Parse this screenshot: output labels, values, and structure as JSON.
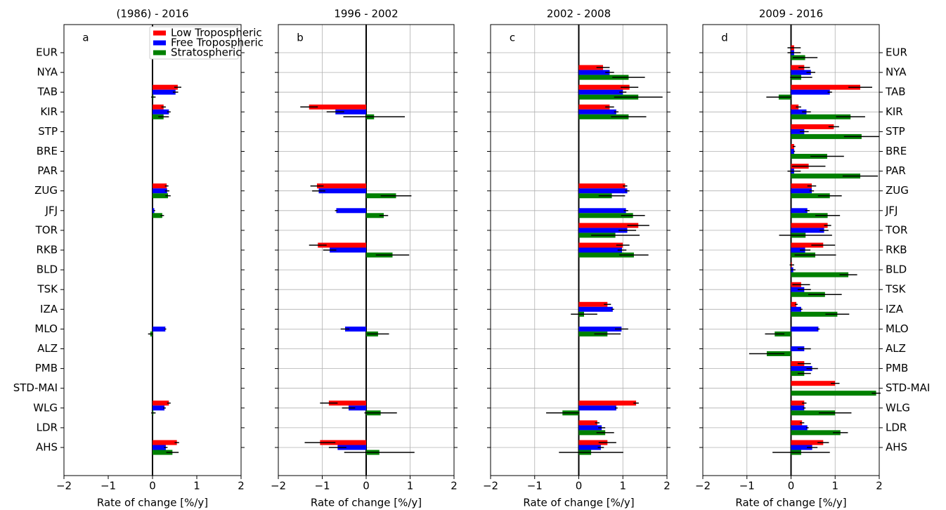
{
  "chart_data": [
    {
      "type": "bar",
      "orientation": "horizontal",
      "title": "(1986) - 2016",
      "annotation": "a",
      "xlabel": "Rate of change [%/y]",
      "categories": [
        "EUR",
        "NYA",
        "TAB",
        "KIR",
        "STP",
        "BRE",
        "PAR",
        "ZUG",
        "JFJ",
        "TOR",
        "RKB",
        "BLD",
        "TSK",
        "IZA",
        "MLO",
        "ALZ",
        "PMB",
        "STD-MAI",
        "WLG",
        "LDR",
        "AHS"
      ],
      "category_labels_side": "left",
      "grid": false,
      "legend": "upper right",
      "xlim": [
        -2,
        2
      ],
      "xticks": [
        {
          "value": -2,
          "label": "−2"
        },
        {
          "value": -1,
          "label": "−1"
        },
        0,
        1,
        2
      ],
      "series": [
        {
          "name": "Low Tropospheric",
          "color": "#ff0000",
          "values": [
            null,
            null,
            0.57,
            0.25,
            null,
            null,
            null,
            0.32,
            null,
            null,
            null,
            null,
            null,
            null,
            null,
            null,
            null,
            null,
            0.37,
            null,
            0.55
          ],
          "errors": [
            null,
            null,
            0.08,
            0.05,
            null,
            null,
            null,
            0.04,
            null,
            null,
            null,
            null,
            null,
            null,
            null,
            null,
            null,
            null,
            0.04,
            null,
            0.05
          ]
        },
        {
          "name": "Free Tropospheric",
          "color": "#0000ff",
          "values": [
            null,
            null,
            0.52,
            0.37,
            null,
            null,
            null,
            0.33,
            0.04,
            null,
            null,
            null,
            null,
            null,
            0.29,
            null,
            null,
            null,
            0.27,
            null,
            0.3
          ],
          "errors": [
            null,
            null,
            0.06,
            0.04,
            null,
            null,
            null,
            0.05,
            0.02,
            null,
            null,
            null,
            null,
            null,
            0.02,
            null,
            null,
            null,
            0.03,
            null,
            0.04
          ]
        },
        {
          "name": "Stratospheric",
          "color": "#008000",
          "values": [
            null,
            null,
            0.02,
            0.25,
            null,
            null,
            null,
            0.35,
            0.22,
            null,
            null,
            null,
            null,
            null,
            -0.05,
            null,
            null,
            null,
            0.02,
            null,
            0.45
          ],
          "errors": [
            null,
            null,
            0.05,
            0.12,
            null,
            null,
            null,
            0.06,
            0.04,
            null,
            null,
            null,
            null,
            null,
            0.05,
            null,
            null,
            null,
            0.05,
            null,
            0.14
          ]
        }
      ]
    },
    {
      "type": "bar",
      "orientation": "horizontal",
      "title": "1996 - 2002",
      "annotation": "b",
      "xlabel": "Rate of change [%/y]",
      "grid": true,
      "xlim": [
        -2,
        2
      ],
      "xticks": [
        {
          "value": -2,
          "label": "−2"
        },
        {
          "value": -1,
          "label": "−1"
        },
        0,
        1,
        2
      ],
      "series": [
        {
          "color": "#ff0000",
          "values": [
            null,
            null,
            null,
            -1.3,
            null,
            null,
            null,
            -1.12,
            null,
            null,
            -1.1,
            null,
            null,
            null,
            null,
            null,
            null,
            null,
            -0.85,
            null,
            -1.05
          ],
          "errors": [
            null,
            null,
            null,
            0.2,
            null,
            null,
            null,
            0.15,
            null,
            null,
            0.2,
            null,
            null,
            null,
            null,
            null,
            null,
            null,
            0.2,
            null,
            0.35
          ]
        },
        {
          "color": "#0000ff",
          "values": [
            null,
            null,
            null,
            -0.7,
            null,
            null,
            null,
            -1.08,
            -0.68,
            null,
            -0.83,
            null,
            null,
            null,
            -0.48,
            null,
            null,
            null,
            -0.4,
            null,
            -0.65
          ],
          "errors": [
            null,
            null,
            null,
            0.2,
            null,
            null,
            null,
            0.15,
            0.03,
            null,
            0.15,
            null,
            null,
            null,
            0.1,
            null,
            null,
            null,
            0.15,
            null,
            0.2
          ]
        },
        {
          "color": "#008000",
          "values": [
            null,
            null,
            null,
            0.18,
            null,
            null,
            null,
            0.68,
            0.4,
            null,
            0.6,
            null,
            null,
            null,
            0.27,
            null,
            null,
            null,
            0.33,
            null,
            0.3
          ],
          "errors": [
            null,
            null,
            null,
            0.7,
            null,
            null,
            null,
            0.35,
            0.1,
            null,
            0.38,
            null,
            null,
            null,
            0.25,
            null,
            null,
            null,
            0.37,
            null,
            0.8
          ]
        }
      ]
    },
    {
      "type": "bar",
      "orientation": "horizontal",
      "title": "2002 - 2008",
      "annotation": "c",
      "xlabel": "Rate of change [%/y]",
      "grid": true,
      "xlim": [
        -2,
        2
      ],
      "xticks": [
        {
          "value": -2,
          "label": "−2"
        },
        {
          "value": -1,
          "label": "−1"
        },
        0,
        1,
        2
      ],
      "series": [
        {
          "color": "#ff0000",
          "values": [
            null,
            0.55,
            1.15,
            0.7,
            null,
            null,
            null,
            1.05,
            null,
            1.35,
            1.0,
            null,
            null,
            0.65,
            null,
            null,
            null,
            null,
            1.3,
            0.42,
            0.65
          ],
          "errors": [
            null,
            0.15,
            0.2,
            0.1,
            null,
            null,
            null,
            0.05,
            null,
            0.25,
            0.15,
            null,
            null,
            0.08,
            null,
            null,
            null,
            null,
            0.06,
            0.05,
            0.2
          ]
        },
        {
          "color": "#0000ff",
          "values": [
            null,
            0.7,
            1.0,
            0.85,
            null,
            null,
            null,
            1.1,
            1.07,
            1.1,
            0.98,
            null,
            null,
            0.77,
            0.97,
            null,
            null,
            null,
            0.85,
            0.52,
            0.5
          ],
          "errors": [
            null,
            0.1,
            0.08,
            0.05,
            null,
            null,
            null,
            0.05,
            0.05,
            0.2,
            0.1,
            null,
            null,
            0.03,
            0.15,
            null,
            null,
            null,
            0.03,
            0.08,
            0.07
          ]
        },
        {
          "color": "#008000",
          "values": [
            null,
            1.13,
            1.35,
            1.13,
            null,
            null,
            null,
            0.75,
            1.23,
            0.83,
            1.25,
            null,
            null,
            0.12,
            0.65,
            null,
            null,
            null,
            -0.37,
            0.6,
            0.28
          ],
          "errors": [
            null,
            0.37,
            0.55,
            0.4,
            null,
            null,
            null,
            0.3,
            0.27,
            0.55,
            0.33,
            null,
            null,
            0.3,
            0.3,
            null,
            null,
            null,
            0.37,
            0.2,
            0.73
          ]
        }
      ]
    },
    {
      "type": "bar",
      "orientation": "horizontal",
      "title": "2009 - 2016",
      "annotation": "d",
      "xlabel": "Rate of change [%/y]",
      "grid": true,
      "categories": [
        "EUR",
        "NYA",
        "TAB",
        "KIR",
        "STP",
        "BRE",
        "PAR",
        "ZUG",
        "JFJ",
        "TOR",
        "RKB",
        "BLD",
        "TSK",
        "IZA",
        "MLO",
        "ALZ",
        "PMB",
        "STD-MAI",
        "WLG",
        "LDR",
        "AHS"
      ],
      "category_labels_side": "right",
      "xlim": [
        -2,
        2
      ],
      "xticks": [
        {
          "value": -2,
          "label": "−2"
        },
        {
          "value": -1,
          "label": "−1"
        },
        0,
        1,
        2
      ],
      "series": [
        {
          "color": "#ff0000",
          "values": [
            0.07,
            0.3,
            1.57,
            0.17,
            0.97,
            0.07,
            0.4,
            0.47,
            null,
            0.83,
            0.73,
            0.02,
            0.23,
            0.12,
            null,
            null,
            0.3,
            1.0,
            0.3,
            0.25,
            0.73
          ],
          "errors": [
            0.15,
            0.13,
            0.27,
            0.06,
            0.12,
            0.03,
            0.38,
            0.1,
            null,
            0.08,
            0.27,
            0.05,
            0.2,
            0.03,
            null,
            null,
            0.15,
            0.1,
            0.05,
            0.05,
            0.13
          ]
        },
        {
          "color": "#0000ff",
          "values": [
            0.07,
            0.45,
            0.88,
            0.35,
            0.3,
            0.07,
            0.07,
            0.47,
            0.37,
            0.75,
            0.32,
            0.05,
            0.3,
            0.23,
            0.62,
            0.3,
            0.48,
            null,
            0.3,
            0.37,
            0.48
          ],
          "errors": [
            0.15,
            0.1,
            0.05,
            0.1,
            0.1,
            0.02,
            0.15,
            0.05,
            0.05,
            0.1,
            0.12,
            0.05,
            0.15,
            0.03,
            0.03,
            0.15,
            0.13,
            null,
            0.03,
            0.03,
            0.12
          ]
        },
        {
          "color": "#008000",
          "values": [
            0.32,
            0.23,
            -0.28,
            1.35,
            1.6,
            0.82,
            1.57,
            0.88,
            0.83,
            0.33,
            0.55,
            1.3,
            0.77,
            1.05,
            -0.37,
            -0.55,
            0.3,
            1.93,
            1.0,
            1.12,
            0.23
          ],
          "errors": [
            0.28,
            0.25,
            0.28,
            0.33,
            0.4,
            0.38,
            0.4,
            0.27,
            0.28,
            0.6,
            0.47,
            0.2,
            0.38,
            0.27,
            0.22,
            0.4,
            0.15,
            0.1,
            0.37,
            0.17,
            0.65
          ]
        }
      ]
    }
  ]
}
